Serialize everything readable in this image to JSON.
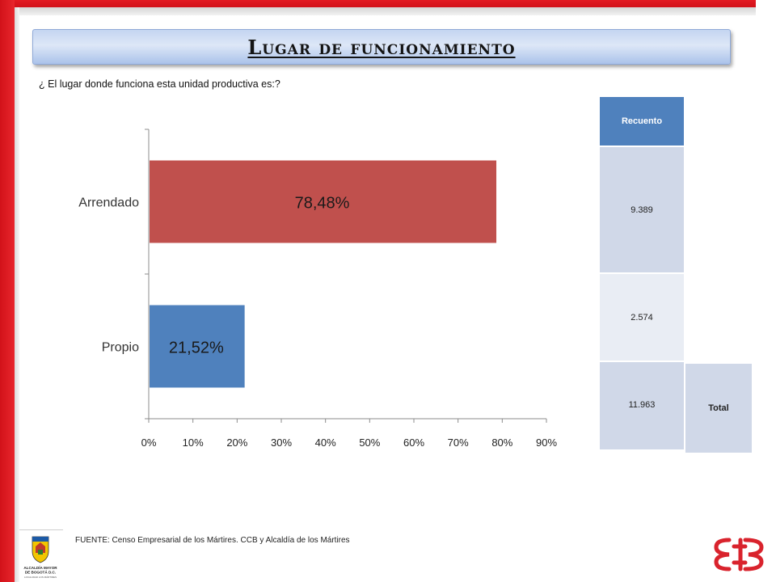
{
  "title": "Lugar de funcionamiento",
  "question": "¿ El lugar donde funciona esta unidad productiva es:?",
  "chart_data": {
    "type": "bar",
    "orientation": "horizontal",
    "categories": [
      "Arrendado",
      "Propio"
    ],
    "values": [
      78.48,
      21.52
    ],
    "data_labels": [
      "78,48%",
      "21,52%"
    ],
    "colors": [
      "#c0504d",
      "#4f81bd"
    ],
    "xlim": [
      0,
      90
    ],
    "xticks": [
      "0%",
      "10%",
      "20%",
      "30%",
      "40%",
      "50%",
      "60%",
      "70%",
      "80%",
      "90%"
    ],
    "title": "",
    "xlabel": "",
    "ylabel": "",
    "grid": false,
    "legend": "none"
  },
  "table": {
    "header": "Recuento",
    "values": [
      "9.389",
      "2.574",
      "11.963"
    ],
    "total_label": "Total"
  },
  "footer": {
    "source": "FUENTE:  Censo Empresarial de los Mártires. CCB y Alcaldía de los Mártires",
    "emblem_text": [
      "ALCALDÍA MAYOR",
      "DE BOGOTÁ D.C.",
      "LOCALIDAD LOS MÁRTIRES"
    ]
  },
  "icons": {
    "emblem": "bogota-coat-of-arms-icon",
    "logo": "ccb-logo-icon"
  }
}
